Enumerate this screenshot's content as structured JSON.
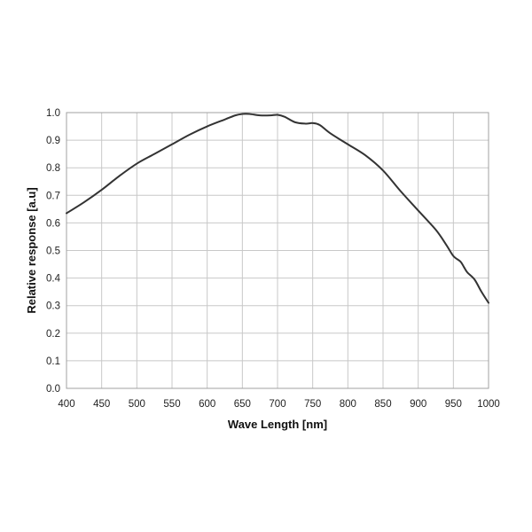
{
  "chart_data": {
    "type": "line",
    "title": "",
    "xlabel": "Wave Length [nm]",
    "ylabel": "Relative response [a.u]",
    "xlim": [
      400,
      1000
    ],
    "ylim": [
      0,
      1.0
    ],
    "grid": true,
    "x_ticks": [
      "400",
      "450",
      "500",
      "550",
      "600",
      "650",
      "700",
      "750",
      "800",
      "850",
      "900",
      "950",
      "1000"
    ],
    "y_ticks": [
      "0.0",
      "0.1",
      "0.2",
      "0.3",
      "0.4",
      "0.5",
      "0.6",
      "0.7",
      "0.8",
      "0.9",
      "1.0"
    ],
    "series": [
      {
        "color": "#333333",
        "x": [
          400,
          425,
          450,
          475,
          500,
          525,
          550,
          575,
          600,
          625,
          640,
          650,
          660,
          675,
          690,
          700,
          710,
          725,
          740,
          750,
          760,
          775,
          800,
          825,
          850,
          875,
          900,
          925,
          940,
          950,
          960,
          965,
          970,
          980,
          990,
          1000
        ],
        "y": [
          0.635,
          0.675,
          0.72,
          0.77,
          0.815,
          0.85,
          0.885,
          0.92,
          0.95,
          0.975,
          0.99,
          0.995,
          0.995,
          0.99,
          0.99,
          0.992,
          0.985,
          0.965,
          0.96,
          0.962,
          0.955,
          0.925,
          0.885,
          0.845,
          0.79,
          0.715,
          0.645,
          0.575,
          0.52,
          0.48,
          0.46,
          0.44,
          0.42,
          0.395,
          0.35,
          0.31
        ]
      }
    ]
  }
}
